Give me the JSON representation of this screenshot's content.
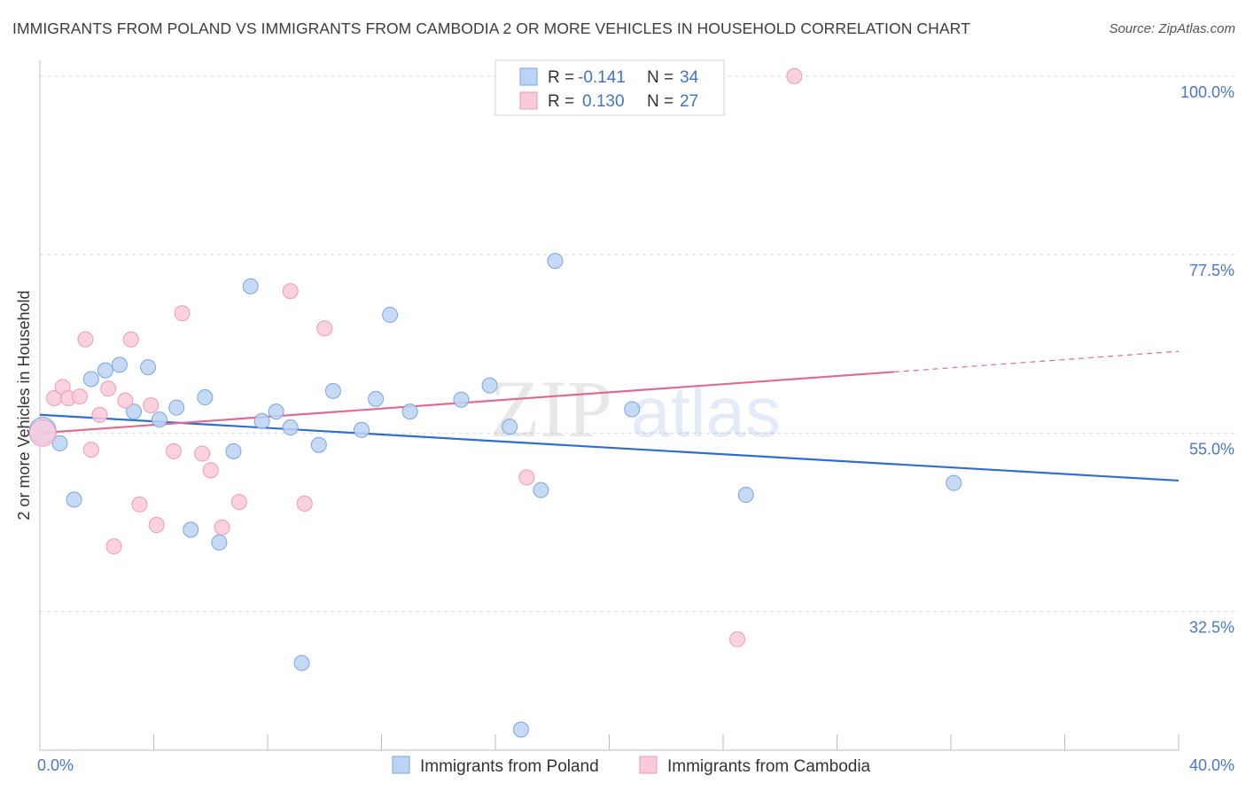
{
  "title": "IMMIGRANTS FROM POLAND VS IMMIGRANTS FROM CAMBODIA 2 OR MORE VEHICLES IN HOUSEHOLD CORRELATION CHART",
  "source": "Source: ZipAtlas.com",
  "watermark": {
    "zip": "ZIP",
    "atlas": "atlas"
  },
  "colors": {
    "poland_fill": "#bcd4f4",
    "poland_stroke": "#7aa6e0",
    "poland_line": "#2e6fd0",
    "cambodia_fill": "#f9cad9",
    "cambodia_stroke": "#ee9bb7",
    "cambodia_line": "#e06a95",
    "tick_text": "#4a78c8",
    "grid": "#d9d9d9"
  },
  "legend": {
    "poland": {
      "r_label": "R =",
      "r_value": "-0.141",
      "n_label": "N =",
      "n_value": "34"
    },
    "cambodia": {
      "r_label": "R =",
      "r_value": "0.130",
      "n_label": "N =",
      "n_value": "27"
    }
  },
  "chart_data": {
    "type": "scatter",
    "title": "IMMIGRANTS FROM POLAND VS IMMIGRANTS FROM CAMBODIA 2 OR MORE VEHICLES IN HOUSEHOLD CORRELATION CHART",
    "xlabel": "",
    "ylabel": "2 or more Vehicles in Household",
    "xlim": [
      0,
      40
    ],
    "ylim": [
      15,
      102
    ],
    "x_tick_labels": [
      "0.0%",
      "40.0%"
    ],
    "y_ticks": [
      32.5,
      55.0,
      77.5,
      100.0
    ],
    "y_tick_labels": [
      "32.5%",
      "55.0%",
      "77.5%",
      "100.0%"
    ],
    "grid": true,
    "legend_position": "top-center",
    "series": [
      {
        "name": "Immigrants from Poland",
        "trend": {
          "x": [
            0,
            40
          ],
          "y": [
            57.3,
            49.0
          ]
        },
        "points": [
          [
            0.1,
            55.3
          ],
          [
            0.7,
            53.7
          ],
          [
            1.2,
            46.6
          ],
          [
            1.8,
            61.8
          ],
          [
            2.3,
            62.9
          ],
          [
            2.8,
            63.6
          ],
          [
            3.3,
            57.7
          ],
          [
            3.8,
            63.3
          ],
          [
            4.2,
            56.7
          ],
          [
            4.8,
            58.2
          ],
          [
            5.3,
            42.8
          ],
          [
            5.8,
            59.5
          ],
          [
            6.3,
            41.2
          ],
          [
            6.8,
            52.7
          ],
          [
            7.4,
            73.5
          ],
          [
            7.8,
            56.5
          ],
          [
            8.3,
            57.7
          ],
          [
            8.8,
            55.7
          ],
          [
            9.2,
            26.0
          ],
          [
            9.8,
            53.5
          ],
          [
            10.3,
            60.3
          ],
          [
            11.3,
            55.4
          ],
          [
            11.8,
            59.3
          ],
          [
            12.3,
            69.9
          ],
          [
            13.0,
            57.7
          ],
          [
            14.8,
            59.2
          ],
          [
            15.8,
            61.0
          ],
          [
            16.5,
            55.8
          ],
          [
            16.9,
            17.6
          ],
          [
            17.6,
            47.8
          ],
          [
            18.1,
            76.7
          ],
          [
            20.8,
            58.0
          ],
          [
            24.8,
            47.2
          ],
          [
            32.1,
            48.7
          ]
        ]
      },
      {
        "name": "Immigrants from Cambodia",
        "trend": {
          "x": [
            0,
            30
          ],
          "y": [
            55.0,
            62.7
          ],
          "dashed_x": [
            30,
            40
          ],
          "dashed_y": [
            62.7,
            65.3
          ]
        },
        "points": [
          [
            0.1,
            55.0
          ],
          [
            0.5,
            59.4
          ],
          [
            0.8,
            60.8
          ],
          [
            1.0,
            59.4
          ],
          [
            1.4,
            59.6
          ],
          [
            1.6,
            66.8
          ],
          [
            1.8,
            52.9
          ],
          [
            2.1,
            57.3
          ],
          [
            2.4,
            60.6
          ],
          [
            2.6,
            40.7
          ],
          [
            3.0,
            59.1
          ],
          [
            3.2,
            66.8
          ],
          [
            3.5,
            46.0
          ],
          [
            3.9,
            58.5
          ],
          [
            4.1,
            43.4
          ],
          [
            4.7,
            52.7
          ],
          [
            5.0,
            70.1
          ],
          [
            5.7,
            52.4
          ],
          [
            6.0,
            50.3
          ],
          [
            6.4,
            43.1
          ],
          [
            7.0,
            46.3
          ],
          [
            8.8,
            72.9
          ],
          [
            9.3,
            46.1
          ],
          [
            10.0,
            68.2
          ],
          [
            17.1,
            49.4
          ],
          [
            24.5,
            29.0
          ],
          [
            26.5,
            100.0
          ]
        ]
      }
    ]
  },
  "bottom_legend": {
    "poland_label": "Immigrants from Poland",
    "cambodia_label": "Immigrants from Cambodia"
  }
}
